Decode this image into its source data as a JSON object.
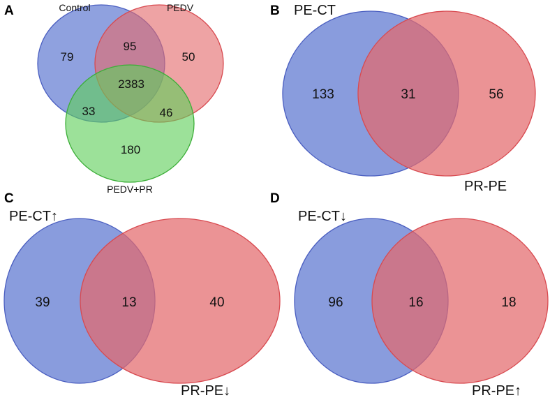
{
  "colors": {
    "blue_fill": "#6f86d6",
    "blue_stroke": "#4a5ec0",
    "red_fill": "#e36a6c",
    "red_stroke": "#d84a50",
    "green_fill": "#5fcf5b",
    "green_stroke": "#3cae38"
  },
  "panels": {
    "a": {
      "letter": "A",
      "labels": {
        "control": "Control",
        "pedv": "PEDV",
        "pedv_pr": "PEDV+PR"
      },
      "counts": {
        "control_only": "79",
        "pedv_only": "50",
        "pedv_pr_only": "180",
        "control_pedv": "95",
        "control_pedv_pr": "33",
        "pedv_pedv_pr": "46",
        "all_three": "2383"
      }
    },
    "b": {
      "letter": "B",
      "labels": {
        "left": "PE-CT",
        "right": "PR-PE"
      },
      "counts": {
        "left_only": "133",
        "overlap": "31",
        "right_only": "56"
      }
    },
    "c": {
      "letter": "C",
      "labels": {
        "left": "PE-CT↑",
        "right": "PR-PE↓"
      },
      "counts": {
        "left_only": "39",
        "overlap": "13",
        "right_only": "40"
      }
    },
    "d": {
      "letter": "D",
      "labels": {
        "left": "PE-CT↓",
        "right": "PR-PE↑"
      },
      "counts": {
        "left_only": "96",
        "overlap": "16",
        "right_only": "18"
      }
    }
  }
}
